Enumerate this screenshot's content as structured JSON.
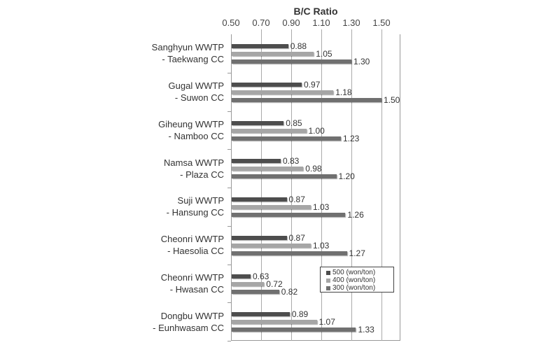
{
  "chart_data": {
    "type": "bar",
    "orientation": "horizontal",
    "title": "B/C Ratio",
    "xlabel": "B/C Ratio",
    "ylabel": "",
    "xlim": [
      0.5,
      1.62
    ],
    "x_ticks": [
      "0.50",
      "0.70",
      "0.90",
      "1.10",
      "1.30",
      "1.50"
    ],
    "grid": true,
    "legend_position": "inside-lower-right",
    "categories": [
      [
        "Sanghyun WWTP",
        "- Taekwang CC"
      ],
      [
        "Gugal WWTP",
        "- Suwon CC"
      ],
      [
        "Giheung WWTP",
        "- Namboo CC"
      ],
      [
        "Namsa WWTP",
        "- Plaza CC"
      ],
      [
        "Suji WWTP",
        "- Hansung CC"
      ],
      [
        "Cheonri WWTP",
        "- Haesolia CC"
      ],
      [
        "Cheonri WWTP",
        "- Hwasan CC"
      ],
      [
        "Dongbu WWTP",
        "- Eunhwasam CC"
      ]
    ],
    "series": [
      {
        "name": "500 (won/ton)",
        "color": "#4d4d4d",
        "values": [
          0.88,
          0.97,
          0.85,
          0.83,
          0.87,
          0.87,
          0.63,
          0.89
        ],
        "labels": [
          "0.88",
          "0.97",
          "0.85",
          "0.83",
          "0.87",
          "0.87",
          "0.63",
          "0.89"
        ]
      },
      {
        "name": "400 (won/ton)",
        "color": "#a6a6a6",
        "values": [
          1.05,
          1.18,
          1.0,
          0.98,
          1.03,
          1.03,
          0.72,
          1.07
        ],
        "labels": [
          "1.05",
          "1.18",
          "1.00",
          "0.98",
          "1.03",
          "1.03",
          "0.72",
          "1.07"
        ]
      },
      {
        "name": "300 (won/ton)",
        "color": "#707070",
        "values": [
          1.3,
          1.5,
          1.23,
          1.2,
          1.26,
          1.27,
          0.82,
          1.33
        ],
        "labels": [
          "1.30",
          "1.50",
          "1.23",
          "1.20",
          "1.26",
          "1.27",
          "0.82",
          "1.33"
        ]
      }
    ]
  }
}
